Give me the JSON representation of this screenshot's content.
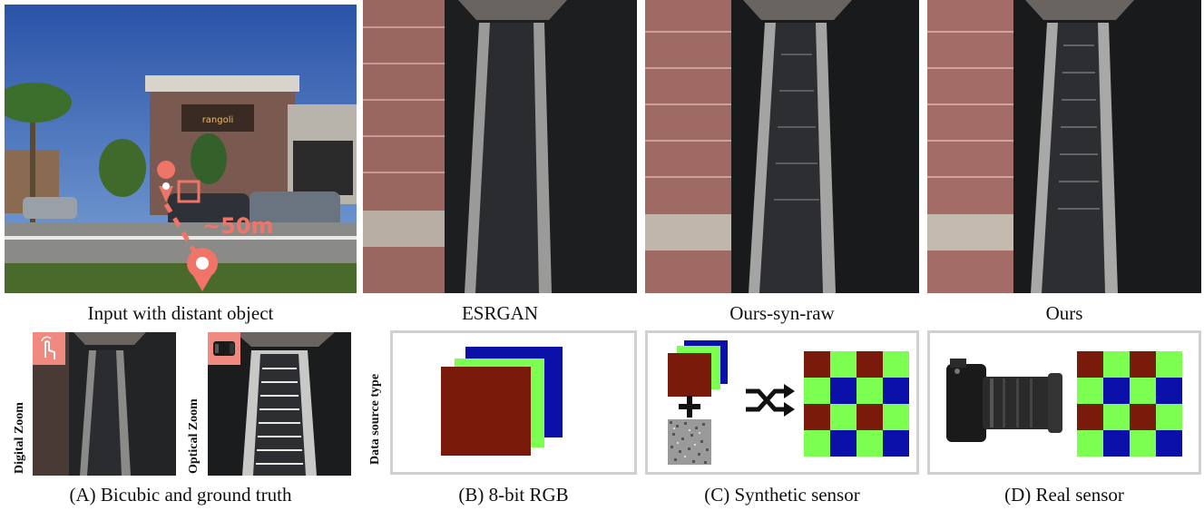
{
  "captions": {
    "input": "Input with distant object",
    "esrgan": "ESRGAN",
    "syn_raw": "Ours-syn-raw",
    "ours": "Ours",
    "a": "(A) Bicubic and ground truth",
    "b": "(B) 8-bit RGB",
    "c": "(C) Synthetic sensor",
    "d": "(D) Real sensor"
  },
  "labels": {
    "distance": "~50m",
    "digital_zoom": "Digital Zoom",
    "optical_zoom": "Optical Zoom",
    "data_source_type": "Data source type"
  },
  "scene_sign": "rangoli",
  "colors": {
    "red_channel": "#7a1a0a",
    "green_channel": "#7cff50",
    "blue_channel": "#0a10a8",
    "marker": "#f07468",
    "panel_border": "#d0d0d0"
  }
}
